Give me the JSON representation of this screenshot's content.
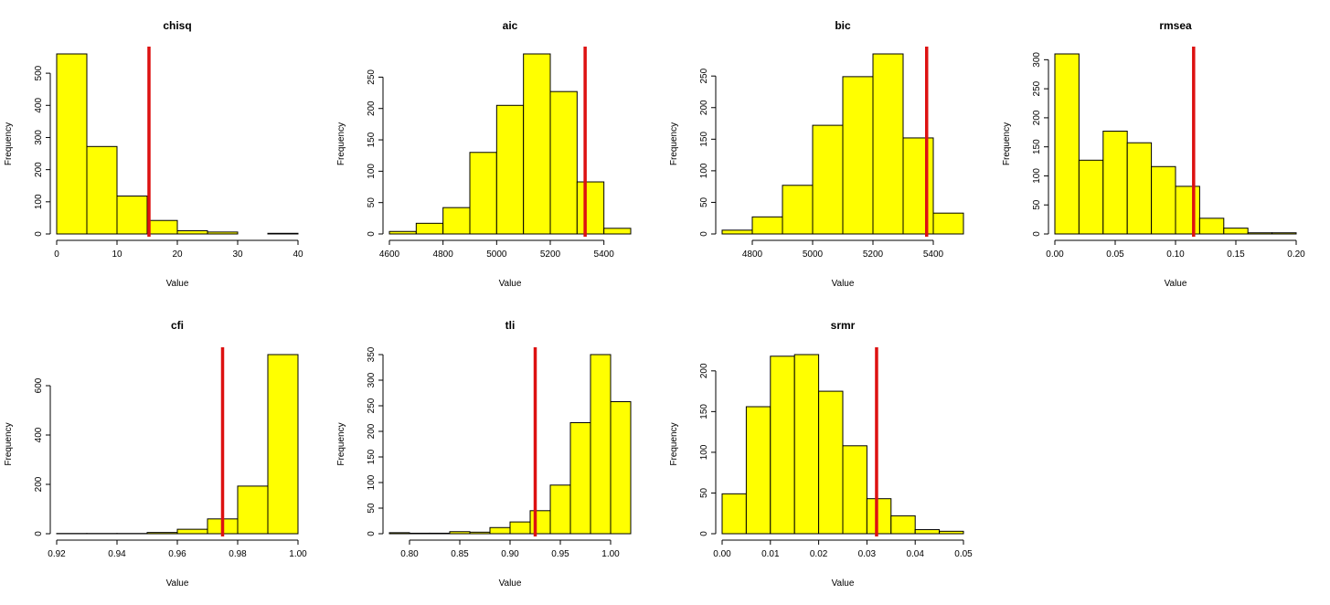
{
  "chart_data": [
    {
      "type": "histogram",
      "title": "chisq",
      "xlabel": "Value",
      "ylabel": "Frequency",
      "bin_edges": [
        0,
        5,
        10,
        15,
        20,
        25,
        30,
        35,
        40
      ],
      "counts": [
        560,
        272,
        118,
        42,
        10,
        6,
        0,
        2
      ],
      "xlim": [
        0,
        40
      ],
      "ylim": [
        0,
        560
      ],
      "xticks": [
        0,
        10,
        20,
        30,
        40
      ],
      "xtick_labels": [
        "0",
        "10",
        "20",
        "30",
        "40"
      ],
      "yticks": [
        0,
        100,
        200,
        300,
        400,
        500
      ],
      "ytick_labels": [
        "0",
        "100",
        "200",
        "300",
        "400",
        "500"
      ],
      "vline": 15.3,
      "bar_color": "#FFFF00",
      "line_color": "#DD1111"
    },
    {
      "type": "histogram",
      "title": "aic",
      "xlabel": "Value",
      "ylabel": "Frequency",
      "bin_edges": [
        4600,
        4700,
        4800,
        4900,
        5000,
        5100,
        5200,
        5300,
        5400,
        5500
      ],
      "counts": [
        4,
        17,
        42,
        130,
        205,
        287,
        227,
        83,
        9
      ],
      "xlim": [
        4600,
        5500
      ],
      "ylim": [
        0,
        287
      ],
      "xticks": [
        4600,
        4800,
        5000,
        5200,
        5400
      ],
      "xtick_labels": [
        "4600",
        "4800",
        "5000",
        "5200",
        "5400"
      ],
      "yticks": [
        0,
        50,
        100,
        150,
        200,
        250
      ],
      "ytick_labels": [
        "0",
        "50",
        "100",
        "150",
        "200",
        "250"
      ],
      "vline": 5330,
      "bar_color": "#FFFF00",
      "line_color": "#DD1111"
    },
    {
      "type": "histogram",
      "title": "bic",
      "xlabel": "Value",
      "ylabel": "Frequency",
      "bin_edges": [
        4700,
        4800,
        4900,
        5000,
        5100,
        5200,
        5300,
        5400,
        5500
      ],
      "counts": [
        6,
        27,
        77,
        172,
        249,
        285,
        152,
        33
      ],
      "xlim": [
        4700,
        5500
      ],
      "ylim": [
        0,
        285
      ],
      "xticks": [
        4800,
        5000,
        5200,
        5400
      ],
      "xtick_labels": [
        "4800",
        "5000",
        "5200",
        "5400"
      ],
      "yticks": [
        0,
        50,
        100,
        150,
        200,
        250
      ],
      "ytick_labels": [
        "0",
        "50",
        "100",
        "150",
        "200",
        "250"
      ],
      "vline": 5378,
      "bar_color": "#FFFF00",
      "line_color": "#DD1111"
    },
    {
      "type": "histogram",
      "title": "rmsea",
      "xlabel": "Value",
      "ylabel": "Frequency",
      "bin_edges": [
        0.0,
        0.02,
        0.04,
        0.06,
        0.08,
        0.1,
        0.12,
        0.14,
        0.16,
        0.18,
        0.2
      ],
      "counts": [
        310,
        127,
        177,
        157,
        116,
        82,
        27,
        10,
        2,
        2
      ],
      "xlim": [
        0.0,
        0.2
      ],
      "ylim": [
        0,
        310
      ],
      "xticks": [
        0.0,
        0.05,
        0.1,
        0.15,
        0.2
      ],
      "xtick_labels": [
        "0.00",
        "0.05",
        "0.10",
        "0.15",
        "0.20"
      ],
      "yticks": [
        0,
        50,
        100,
        150,
        200,
        250,
        300
      ],
      "ytick_labels": [
        "0",
        "50",
        "100",
        "150",
        "200",
        "250",
        "300"
      ],
      "vline": 0.115,
      "bar_color": "#FFFF00",
      "line_color": "#DD1111"
    },
    {
      "type": "histogram",
      "title": "cfi",
      "xlabel": "Value",
      "ylabel": "Frequency",
      "bin_edges": [
        0.92,
        0.93,
        0.94,
        0.95,
        0.96,
        0.97,
        0.98,
        0.99,
        1.0
      ],
      "counts": [
        1,
        1,
        1,
        5,
        18,
        60,
        193,
        726
      ],
      "xlim": [
        0.92,
        1.0
      ],
      "ylim": [
        0,
        726
      ],
      "xticks": [
        0.92,
        0.94,
        0.96,
        0.98,
        1.0
      ],
      "xtick_labels": [
        "0.92",
        "0.94",
        "0.96",
        "0.98",
        "1.00"
      ],
      "yticks": [
        0,
        200,
        400,
        600
      ],
      "ytick_labels": [
        "0",
        "200",
        "400",
        "600"
      ],
      "vline": 0.975,
      "bar_color": "#FFFF00",
      "line_color": "#DD1111"
    },
    {
      "type": "histogram",
      "title": "tli",
      "xlabel": "Value",
      "ylabel": "Frequency",
      "bin_edges": [
        0.78,
        0.8,
        0.82,
        0.84,
        0.86,
        0.88,
        0.9,
        0.92,
        0.94,
        0.96,
        0.98,
        1.0,
        1.02
      ],
      "counts": [
        2,
        1,
        1,
        4,
        3,
        12,
        23,
        45,
        95,
        217,
        350,
        258
      ],
      "xlim": [
        0.78,
        1.02
      ],
      "ylim": [
        0,
        350
      ],
      "xticks": [
        0.8,
        0.85,
        0.9,
        0.95,
        1.0
      ],
      "xtick_labels": [
        "0.80",
        "0.85",
        "0.90",
        "0.95",
        "1.00"
      ],
      "yticks": [
        0,
        50,
        100,
        150,
        200,
        250,
        300,
        350
      ],
      "ytick_labels": [
        "0",
        "50",
        "100",
        "150",
        "200",
        "250",
        "300",
        "350"
      ],
      "vline": 0.925,
      "bar_color": "#FFFF00",
      "line_color": "#DD1111"
    },
    {
      "type": "histogram",
      "title": "srmr",
      "xlabel": "Value",
      "ylabel": "Frequency",
      "bin_edges": [
        0.0,
        0.005,
        0.01,
        0.015,
        0.02,
        0.025,
        0.03,
        0.035,
        0.04,
        0.045,
        0.05
      ],
      "counts": [
        49,
        156,
        218,
        220,
        175,
        108,
        43,
        22,
        5,
        3
      ],
      "xlim": [
        0.0,
        0.05
      ],
      "ylim": [
        0,
        220
      ],
      "xticks": [
        0.0,
        0.01,
        0.02,
        0.03,
        0.04,
        0.05
      ],
      "xtick_labels": [
        "0.00",
        "0.01",
        "0.02",
        "0.03",
        "0.04",
        "0.05"
      ],
      "yticks": [
        0,
        50,
        100,
        150,
        200
      ],
      "ytick_labels": [
        "0",
        "50",
        "100",
        "150",
        "200"
      ],
      "vline": 0.032,
      "bar_color": "#FFFF00",
      "line_color": "#DD1111"
    }
  ]
}
